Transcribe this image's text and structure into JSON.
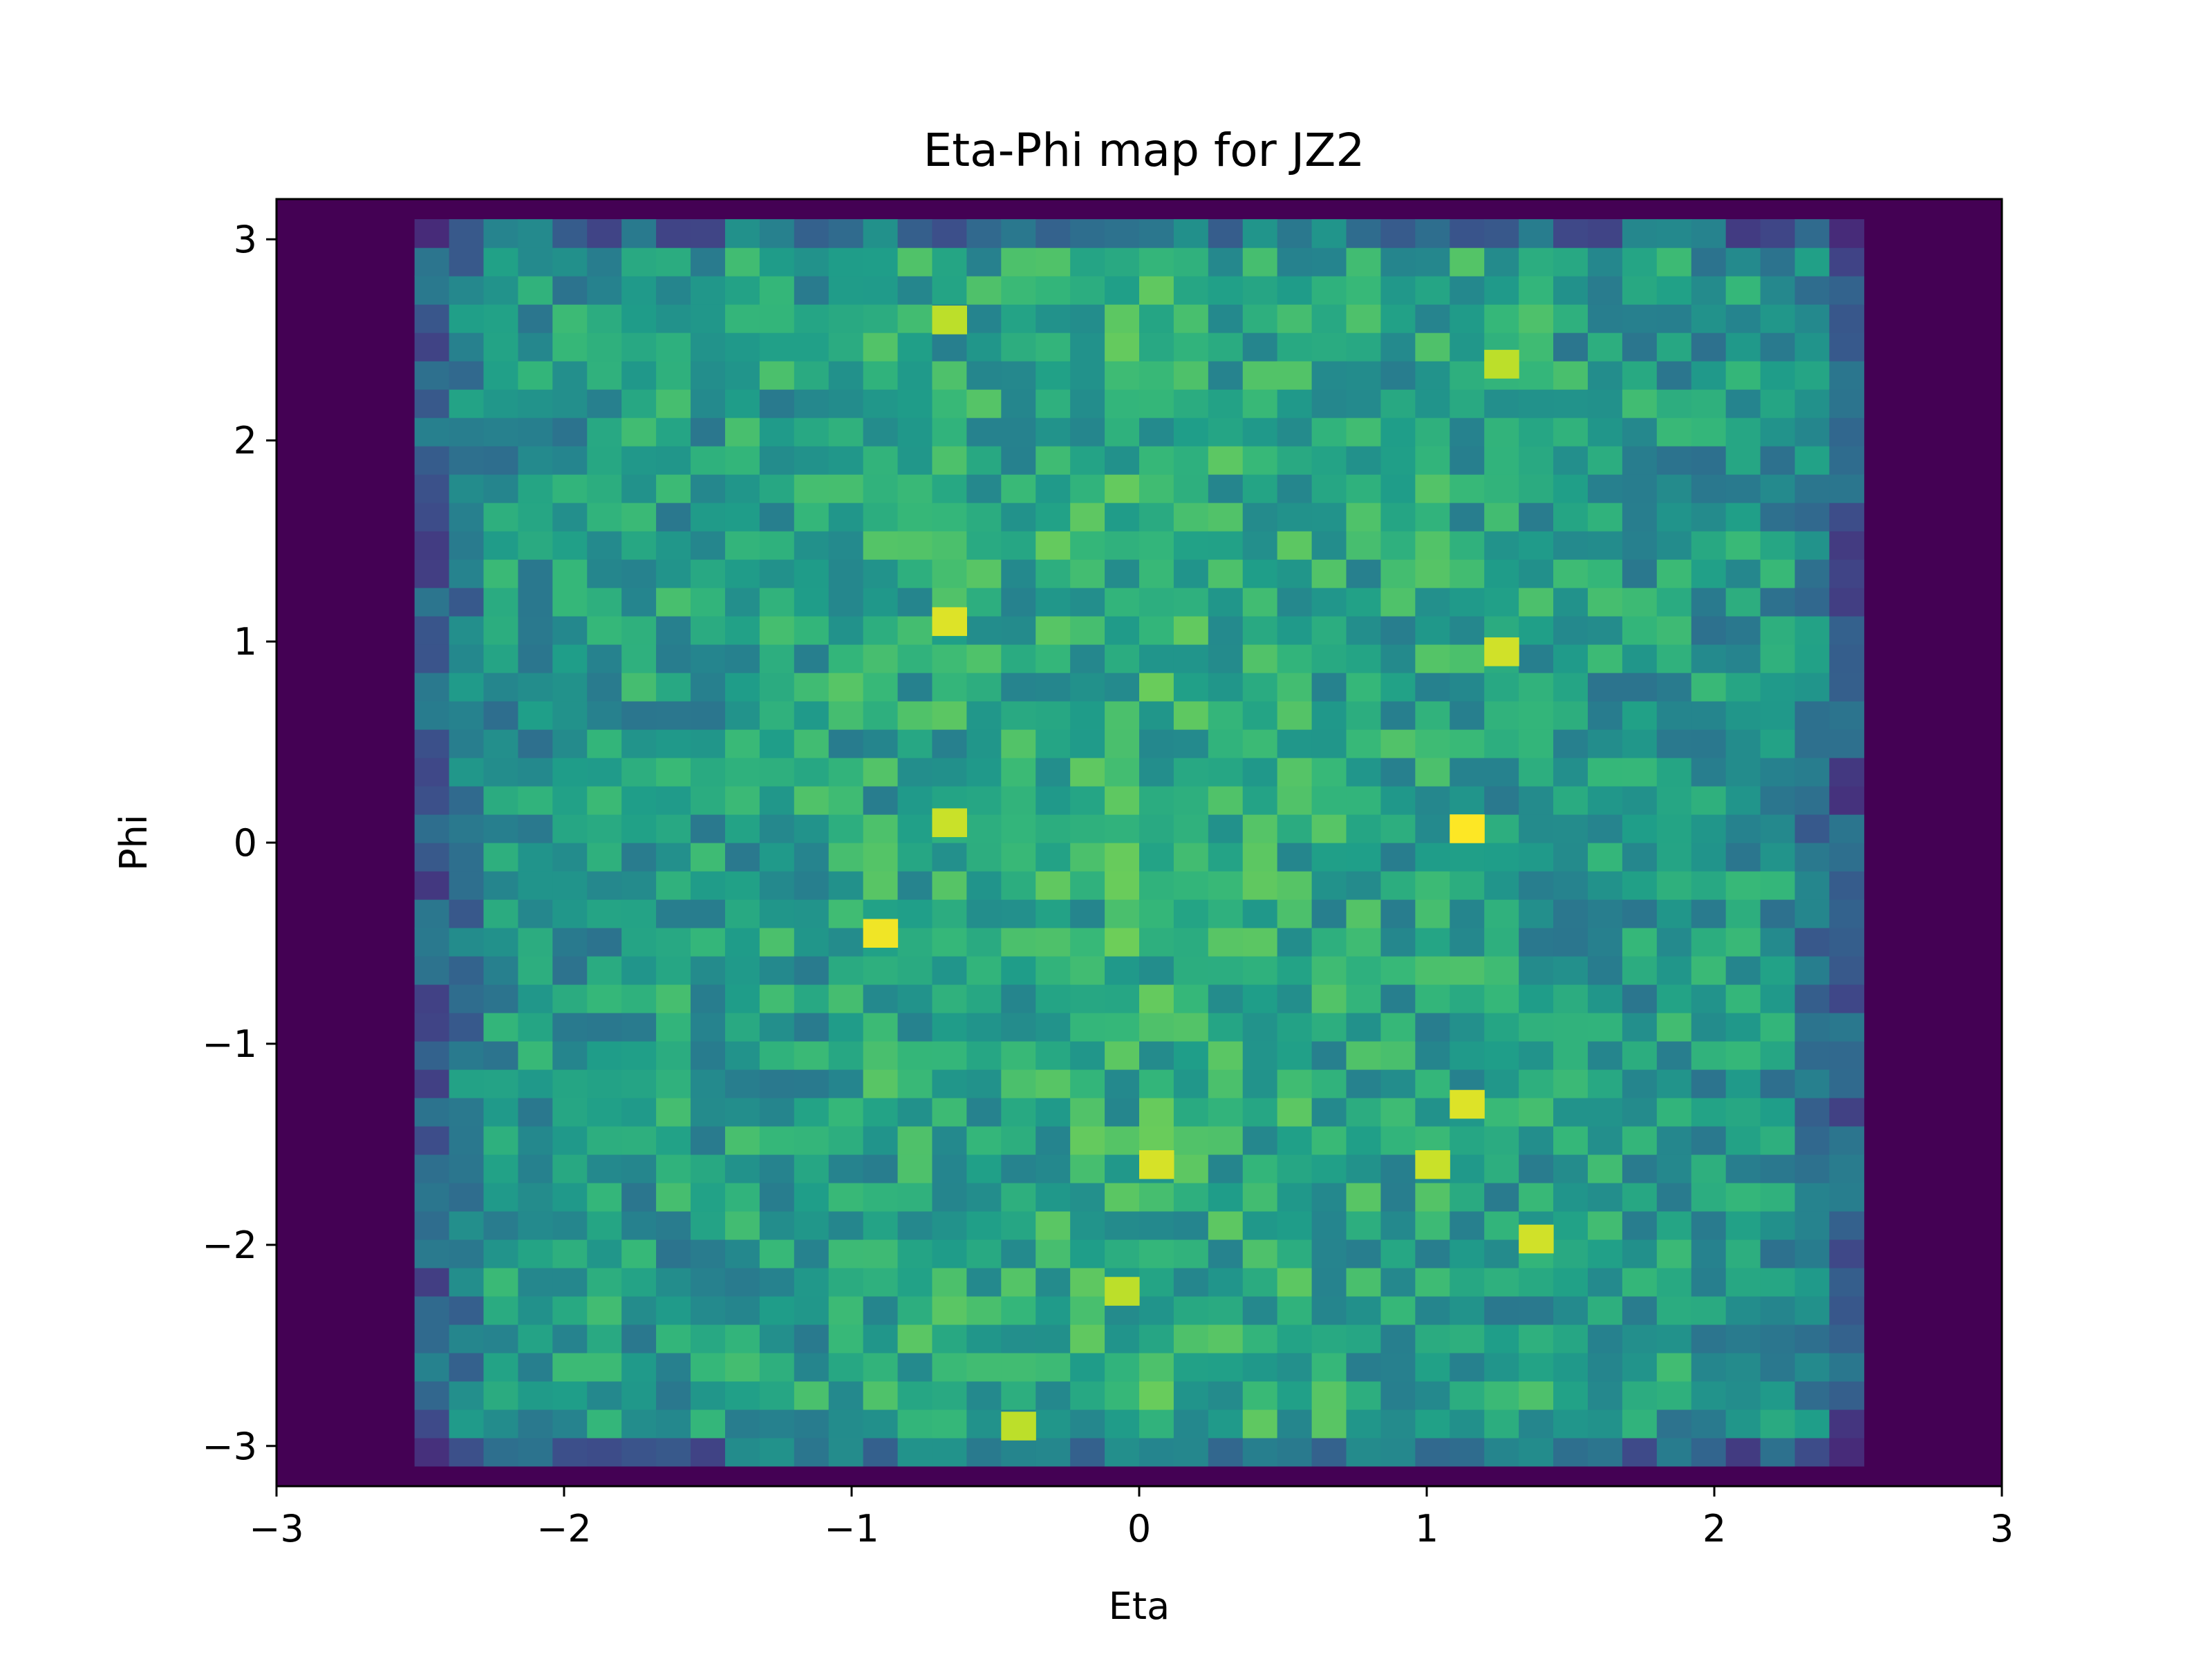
{
  "chart_data": {
    "type": "heatmap",
    "title": "Eta-Phi map for JZ2",
    "xlabel": "Eta",
    "ylabel": "Phi",
    "xlim": [
      -3,
      3
    ],
    "ylim": [
      -3.2,
      3.2
    ],
    "x_ticks": [
      -3,
      -2,
      -1,
      0,
      1,
      2,
      3
    ],
    "x_tick_labels": [
      "−3",
      "−2",
      "−1",
      "0",
      "1",
      "2",
      "3"
    ],
    "y_ticks": [
      -3,
      -2,
      -1,
      0,
      1,
      2,
      3
    ],
    "y_tick_labels": [
      "−3",
      "−2",
      "−1",
      "0",
      "1",
      "2",
      "3"
    ],
    "colormap": "viridis",
    "grid": false,
    "legend": "none",
    "bins": {
      "eta_edges_range": [
        -3.0,
        3.0
      ],
      "eta_bin_count": 50,
      "phi_edges_range": [
        -3.2,
        3.2
      ],
      "phi_bin_count": 50,
      "populated_eta_range": [
        -2.52,
        2.52
      ],
      "populated_phi_range": [
        -3.1,
        3.1
      ]
    },
    "values_description": "normalized intensity 0-1, roughly uniform moderate density inside |eta|<2.5, lower near edges, zero outside",
    "hot_bins": [
      {
        "eta": -0.66,
        "phi": 1.1,
        "value": 0.95
      },
      {
        "eta": -0.66,
        "phi": 2.6,
        "value": 0.9
      },
      {
        "eta": -0.9,
        "phi": -0.45,
        "value": 0.98
      },
      {
        "eta": -0.66,
        "phi": 0.1,
        "value": 0.92
      },
      {
        "eta": 1.14,
        "phi": 0.07,
        "value": 1.0
      },
      {
        "eta": 1.26,
        "phi": 0.95,
        "value": 0.93
      },
      {
        "eta": 1.26,
        "phi": 2.38,
        "value": 0.9
      },
      {
        "eta": 1.14,
        "phi": -1.3,
        "value": 0.95
      },
      {
        "eta": 1.02,
        "phi": -1.6,
        "value": 0.92
      },
      {
        "eta": 0.06,
        "phi": -1.6,
        "value": 0.94
      },
      {
        "eta": 1.38,
        "phi": -1.97,
        "value": 0.93
      },
      {
        "eta": -0.42,
        "phi": -2.9,
        "value": 0.9
      },
      {
        "eta": -0.06,
        "phi": -2.23,
        "value": 0.9
      }
    ],
    "colors": {
      "empty": "#440154",
      "frame": "#000000"
    }
  }
}
